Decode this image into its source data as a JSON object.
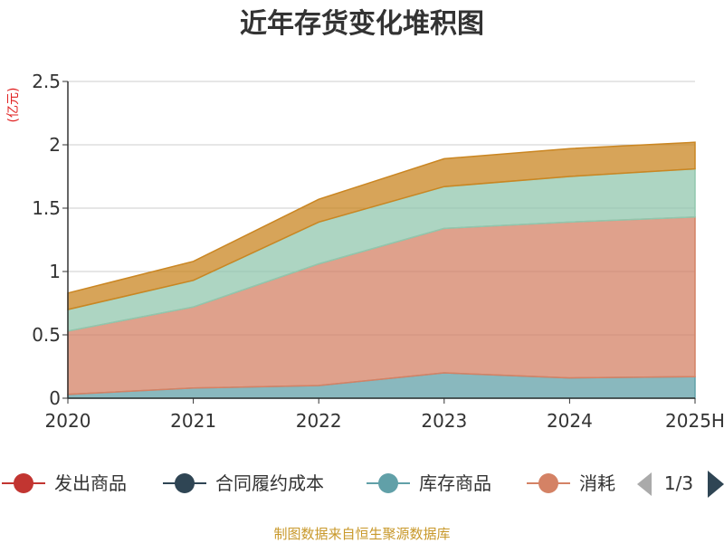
{
  "title": "近年存货变化堆积图",
  "unit_label": "(亿元)",
  "source_text": "制图数据来自恒生聚源数据库",
  "legend": {
    "items": [
      {
        "label": "发出商品",
        "color": "#c23531"
      },
      {
        "label": "合同履约成本",
        "color": "#2f4554"
      },
      {
        "label": "库存商品",
        "color": "#61a0a8"
      },
      {
        "label": "消耗",
        "color": "#d48265"
      }
    ],
    "page_text": "1/3",
    "arrow_prev_color": "#aaaaaa",
    "arrow_next_color": "#2f4554"
  },
  "chart_data": {
    "type": "area",
    "stacked": true,
    "x": [
      "2020",
      "2021",
      "2022",
      "2023",
      "2024",
      "2025H"
    ],
    "ylim": [
      0,
      2.5
    ],
    "yticks": [
      "0",
      "0.5",
      "1",
      "1.5",
      "2",
      "2.5"
    ],
    "grid": true,
    "series": [
      {
        "name": "库存商品",
        "color": "#61a0a8",
        "values": [
          0.03,
          0.08,
          0.1,
          0.2,
          0.16,
          0.17
        ]
      },
      {
        "name": "消耗",
        "color": "#d48265",
        "values": [
          0.5,
          0.64,
          0.96,
          1.14,
          1.23,
          1.26
        ]
      },
      {
        "color": "#91c7ae",
        "values": [
          0.17,
          0.21,
          0.33,
          0.33,
          0.36,
          0.38
        ]
      },
      {
        "color": "#ca8622",
        "values": [
          0.13,
          0.15,
          0.18,
          0.22,
          0.22,
          0.21
        ]
      }
    ]
  }
}
